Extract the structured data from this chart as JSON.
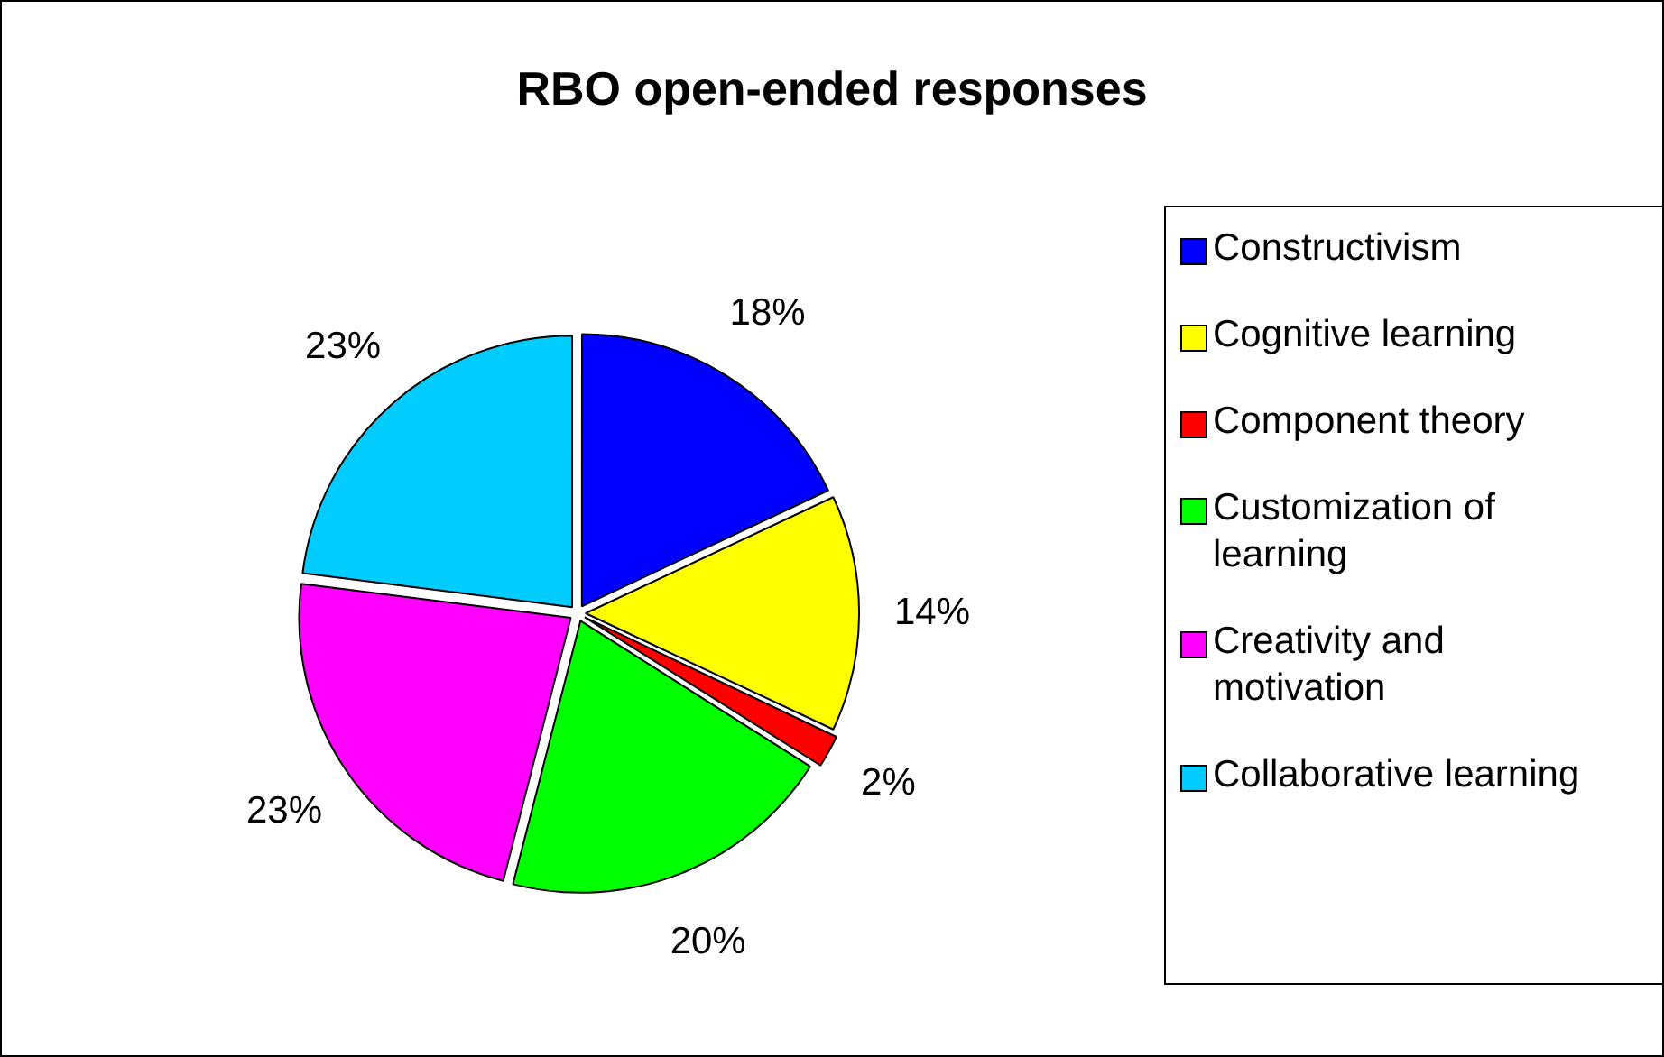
{
  "chart_data": {
    "type": "pie",
    "title": "RBO open-ended responses",
    "categories": [
      "Constructivism",
      "Cognitive learning",
      "Component theory",
      "Customization of learning",
      "Creativity and motivation",
      "Collaborative learning"
    ],
    "values": [
      18,
      14,
      2,
      20,
      23,
      23
    ],
    "colors": [
      "#0000ff",
      "#ffff00",
      "#ff0000",
      "#00ff00",
      "#ff00ff",
      "#00ccff"
    ],
    "value_labels": [
      "18%",
      "14%",
      "2%",
      "20%",
      "23%",
      "23%"
    ],
    "legend": "right"
  }
}
